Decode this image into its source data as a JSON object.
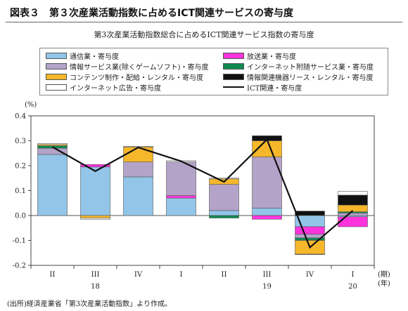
{
  "figure": {
    "title": "図表３　第３次産業活動指数に占めるICT関連サービスの寄与度",
    "source_note": "(出所)経済産業省「第3次産業活動指数」より作成。"
  },
  "chart_data": {
    "type": "bar",
    "stacked": true,
    "title": "第3次産業活動指数総合に占めるICT関連サービス指数の寄与度",
    "ylabel": "(%)",
    "xlabel": "(期)\n(年)",
    "ylim": [
      -0.2,
      0.4
    ],
    "yticks": [
      "0.4",
      "0.3",
      "0.2",
      "0.1",
      "0.0",
      "-0.1",
      "-0.2"
    ],
    "ytick_values": [
      0.4,
      0.3,
      0.2,
      0.1,
      0.0,
      -0.1,
      -0.2
    ],
    "categories": [
      "II",
      "III",
      "IV",
      "I",
      "II",
      "III",
      "IV",
      "I"
    ],
    "year_labels": [
      {
        "label": "18",
        "category_index": 1
      },
      {
        "label": "19",
        "category_index": 5
      },
      {
        "label": "20",
        "category_index": 7
      }
    ],
    "period_label": "(期)",
    "year_axis_label": "(年)",
    "legend_position": "top",
    "series": [
      {
        "name": "通信業・寄与度",
        "color": "#92c5e8",
        "values": [
          0.245,
          0.195,
          0.155,
          0.07,
          0.02,
          0.03,
          -0.045,
          -0.005
        ]
      },
      {
        "name": "放送業・寄与度",
        "color": "#ff33dd",
        "values": [
          0.0,
          0.01,
          0.0,
          0.01,
          0.0,
          -0.015,
          -0.03,
          -0.04
        ]
      },
      {
        "name": "情報サービス業(除くゲームソフト)・寄与度",
        "color": "#b4a3c9",
        "values": [
          0.025,
          0.0,
          0.06,
          0.135,
          0.105,
          0.205,
          -0.015,
          0.01
        ]
      },
      {
        "name": "インターネット附随サービス業・寄与度",
        "color": "#0e8a4f",
        "values": [
          0.01,
          0.0,
          0.0,
          0.0,
          -0.01,
          0.0,
          -0.01,
          0.005
        ]
      },
      {
        "name": "コンテンツ制作・配給・レンタル・寄与度",
        "color": "#f6b72a",
        "values": [
          0.005,
          -0.01,
          0.06,
          0.0,
          0.022,
          0.065,
          -0.055,
          0.027
        ]
      },
      {
        "name": "情報関連機器リース・レンタル・寄与度",
        "color": "#111111",
        "values": [
          0.0,
          0.0,
          0.0,
          0.0,
          0.0,
          0.02,
          0.018,
          0.04
        ]
      },
      {
        "name": "インターネット広告・寄与度",
        "color": "#ffffff",
        "values": [
          0.004,
          -0.005,
          0.003,
          0.005,
          0.003,
          0.0,
          -0.002,
          0.015
        ]
      }
    ],
    "line_series": {
      "name": "ICT関連・寄与度",
      "color": "#111111",
      "values": [
        0.275,
        0.178,
        0.273,
        0.218,
        0.135,
        0.305,
        -0.128,
        0.02
      ]
    },
    "legend_order": [
      0,
      1,
      2,
      3,
      4,
      5,
      6,
      "line"
    ]
  }
}
